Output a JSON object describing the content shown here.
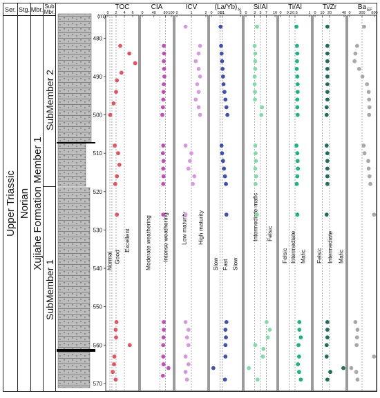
{
  "colors": {
    "TOC": "#e8525f",
    "CIA": "#c64bb8",
    "ICV": "#d79ae0",
    "LaYb": "#3f4fb5",
    "SiAl": "#7fdca6",
    "TiAl": "#17b783",
    "TiZr": "#1d6e5a",
    "Ba": "#a8a8a8",
    "lith_fill": "#b9b9b9",
    "lith_line": "#444444"
  },
  "header": {
    "ser": "Ser.",
    "stg": "Stg.",
    "mbr": "Mbr.",
    "sub_a": "Sub",
    "sub_b": "Mbr."
  },
  "strat": {
    "series": "Upper Triassic",
    "stage": "Norian",
    "member": "Xujiahe Formation Member 1",
    "sub2": "SubMember 2",
    "sub1": "SubMember 1"
  },
  "depth": {
    "unit": "(m)",
    "ticks": [
      "480",
      "490",
      "500",
      "510",
      "520",
      "530",
      "540",
      "550",
      "560",
      "570"
    ]
  },
  "chart_data": {
    "type": "scatter",
    "y_axis": {
      "label": "(m)",
      "range": [
        474,
        572
      ],
      "inverted": true
    },
    "panels": [
      {
        "id": "TOC",
        "title": "TOC",
        "sub": "",
        "xlim": [
          0,
          7
        ],
        "tick_labels": [
          "0",
          "2",
          "4",
          "6"
        ],
        "tick_values": [
          0,
          2,
          4,
          6
        ],
        "grid_values": [
          0.5,
          1,
          2,
          4
        ],
        "zone_labels": [
          "Normal",
          "Good",
          "Excellent"
        ],
        "points": [
          [
            3.0,
            482
          ],
          [
            5.2,
            484
          ],
          [
            6.6,
            486.5
          ],
          [
            3.3,
            489
          ],
          [
            2.2,
            491
          ],
          [
            2.0,
            494
          ],
          [
            1.4,
            497
          ],
          [
            0.6,
            500
          ],
          [
            1.7,
            508
          ],
          [
            2.5,
            510
          ],
          [
            2.8,
            513
          ],
          [
            2.2,
            516
          ],
          [
            1.8,
            518
          ],
          [
            2.2,
            526
          ],
          [
            2.1,
            554
          ],
          [
            1.9,
            556
          ],
          [
            2.0,
            558
          ],
          [
            5.3,
            560
          ],
          [
            1.6,
            563
          ],
          [
            1.5,
            565
          ],
          [
            1.2,
            567
          ],
          [
            1.9,
            569
          ]
        ]
      },
      {
        "id": "CIA",
        "title": "CIA",
        "sub": "",
        "xlim": [
          0,
          100
        ],
        "tick_labels": [
          "0",
          "40",
          "80",
          "100"
        ],
        "tick_values": [
          0,
          40,
          80,
          100
        ],
        "grid_values": [
          60,
          80
        ],
        "zone_labels": [
          "Moderate weathering",
          "Intense weathering"
        ],
        "points": [
          [
            74,
            482
          ],
          [
            75,
            484
          ],
          [
            74,
            486
          ],
          [
            75,
            488
          ],
          [
            76,
            490
          ],
          [
            74,
            492
          ],
          [
            73,
            494
          ],
          [
            72,
            496
          ],
          [
            71,
            498
          ],
          [
            69,
            500
          ],
          [
            72,
            508
          ],
          [
            71,
            510
          ],
          [
            73,
            512
          ],
          [
            72,
            514
          ],
          [
            73,
            516
          ],
          [
            72,
            518
          ],
          [
            72,
            526
          ],
          [
            74,
            554
          ],
          [
            74,
            556
          ],
          [
            73,
            558
          ],
          [
            72,
            560
          ],
          [
            72,
            563
          ],
          [
            73,
            565
          ],
          [
            90,
            566
          ],
          [
            71,
            568
          ]
        ]
      },
      {
        "id": "ICV",
        "title": "ICV",
        "sub": "",
        "xlim": [
          0,
          2
        ],
        "tick_labels": [
          "0",
          "1",
          "2"
        ],
        "tick_values": [
          0,
          1,
          2
        ],
        "grid_values": [
          1
        ],
        "zone_labels": [
          "Low maturity",
          "High maturity"
        ],
        "points": [
          [
            0.6,
            477
          ],
          [
            1.6,
            482
          ],
          [
            1.5,
            484
          ],
          [
            1.3,
            486
          ],
          [
            1.5,
            488
          ],
          [
            1.6,
            490
          ],
          [
            1.4,
            492
          ],
          [
            1.5,
            494
          ],
          [
            1.3,
            496
          ],
          [
            1.5,
            498
          ],
          [
            1.6,
            500
          ],
          [
            0.6,
            508
          ],
          [
            1.0,
            510
          ],
          [
            0.9,
            512
          ],
          [
            0.8,
            514
          ],
          [
            1.2,
            516
          ],
          [
            1.1,
            518
          ],
          [
            0.6,
            526
          ],
          [
            0.6,
            554
          ],
          [
            0.8,
            556
          ],
          [
            0.7,
            558
          ],
          [
            0.8,
            560
          ],
          [
            0.6,
            563
          ],
          [
            0.8,
            565
          ],
          [
            0.6,
            567
          ],
          [
            0.7,
            569
          ]
        ]
      },
      {
        "id": "LaYb",
        "title": "(La/Yb)",
        "sub": "N",
        "xlim": [
          0,
          3
        ],
        "tick_labels": [
          "0",
          "0.9",
          "1.1",
          "3"
        ],
        "tick_values": [
          0,
          0.9,
          1.1,
          3
        ],
        "grid_values": [
          0.9,
          1.1
        ],
        "zone_labels": [
          "Slow",
          "Fast",
          "Slow"
        ],
        "points": [
          [
            0.95,
            477
          ],
          [
            1.0,
            482
          ],
          [
            1.05,
            484
          ],
          [
            1.1,
            486
          ],
          [
            1.15,
            488
          ],
          [
            1.2,
            490
          ],
          [
            1.25,
            492
          ],
          [
            1.35,
            494
          ],
          [
            1.45,
            496
          ],
          [
            1.55,
            498
          ],
          [
            1.65,
            500
          ],
          [
            1.05,
            508
          ],
          [
            1.1,
            510
          ],
          [
            1.2,
            512
          ],
          [
            1.3,
            514
          ],
          [
            1.4,
            516
          ],
          [
            1.5,
            518
          ],
          [
            1.55,
            526
          ],
          [
            1.55,
            554
          ],
          [
            1.45,
            556
          ],
          [
            1.5,
            558
          ],
          [
            1.45,
            560
          ],
          [
            1.45,
            563
          ],
          [
            0.2,
            566
          ],
          [
            1.4,
            569
          ]
        ]
      },
      {
        "id": "SiAl",
        "title": "Si/Al",
        "sub": "",
        "xlim": [
          0,
          10
        ],
        "tick_labels": [
          "0",
          "3",
          "5",
          "7",
          "10"
        ],
        "tick_values": [
          0,
          3,
          5,
          7,
          10
        ],
        "grid_values": [
          3,
          5,
          7
        ],
        "zone_labels": [
          "Intermediate-mafic",
          "Felsic"
        ],
        "points": [
          [
            3.8,
            477
          ],
          [
            3.0,
            482
          ],
          [
            3.2,
            484
          ],
          [
            3.2,
            486
          ],
          [
            3.2,
            488
          ],
          [
            3.0,
            490
          ],
          [
            3.0,
            492
          ],
          [
            3.1,
            494
          ],
          [
            3.1,
            496
          ],
          [
            5.5,
            498
          ],
          [
            5.3,
            500
          ],
          [
            3.2,
            508
          ],
          [
            3.3,
            510
          ],
          [
            3.4,
            512
          ],
          [
            3.2,
            514
          ],
          [
            3.5,
            516
          ],
          [
            3.3,
            518
          ],
          [
            3.8,
            526
          ],
          [
            7.1,
            554
          ],
          [
            8.2,
            556
          ],
          [
            7.5,
            558
          ],
          [
            3.2,
            560
          ],
          [
            6.0,
            561
          ],
          [
            5.8,
            563
          ],
          [
            1.0,
            566
          ],
          [
            4.0,
            569
          ]
        ]
      },
      {
        "id": "TiAl",
        "title": "Ti/Al",
        "sub": "",
        "xlim": [
          0,
          1
        ],
        "tick_labels": [
          "0",
          "0.3",
          "0.5",
          "1"
        ],
        "tick_values": [
          0,
          0.3,
          0.5,
          1
        ],
        "grid_values": [
          0.3,
          0.5
        ],
        "zone_labels": [
          "Felsic",
          "Intermediate",
          "Mafic"
        ],
        "points": [
          [
            0.55,
            477
          ],
          [
            0.57,
            482
          ],
          [
            0.58,
            484
          ],
          [
            0.57,
            486
          ],
          [
            0.56,
            488
          ],
          [
            0.58,
            490
          ],
          [
            0.59,
            492
          ],
          [
            0.59,
            494
          ],
          [
            0.58,
            496
          ],
          [
            0.58,
            498
          ],
          [
            0.59,
            500
          ],
          [
            0.55,
            508
          ],
          [
            0.58,
            510
          ],
          [
            0.59,
            512
          ],
          [
            0.6,
            514
          ],
          [
            0.58,
            516
          ],
          [
            0.56,
            518
          ],
          [
            0.58,
            526
          ],
          [
            0.65,
            554
          ],
          [
            0.65,
            556
          ],
          [
            0.7,
            558
          ],
          [
            0.62,
            560
          ],
          [
            0.64,
            563
          ],
          [
            0.6,
            565
          ],
          [
            0.64,
            567
          ],
          [
            0.7,
            569
          ]
        ]
      },
      {
        "id": "TiZr",
        "title": "Ti/Zr",
        "sub": "",
        "xlim": [
          0,
          40
        ],
        "tick_labels": [
          "0",
          "10",
          "20",
          "40"
        ],
        "tick_values": [
          0,
          10,
          20,
          40
        ],
        "grid_values": [
          10,
          20
        ],
        "zone_labels": [
          "Felsic",
          "Intermediate",
          "Mafic"
        ],
        "points": [
          [
            17,
            477
          ],
          [
            17,
            482
          ],
          [
            17,
            484
          ],
          [
            17,
            486
          ],
          [
            17,
            488
          ],
          [
            17,
            490
          ],
          [
            17,
            492
          ],
          [
            17,
            494
          ],
          [
            17,
            496
          ],
          [
            16,
            498
          ],
          [
            16,
            500
          ],
          [
            16,
            508
          ],
          [
            17,
            510
          ],
          [
            17,
            512
          ],
          [
            17,
            514
          ],
          [
            17,
            516
          ],
          [
            17,
            518
          ],
          [
            16,
            526
          ],
          [
            17,
            554
          ],
          [
            17,
            556
          ],
          [
            17,
            558
          ],
          [
            16,
            560
          ],
          [
            16,
            563
          ],
          [
            39,
            566
          ],
          [
            21,
            567
          ],
          [
            17,
            569
          ]
        ]
      },
      {
        "id": "Ba",
        "title": "Ba",
        "sub": "EF",
        "xlim": [
          0,
          600
        ],
        "tick_labels": [
          "0",
          "300",
          "600"
        ],
        "tick_values": [
          0,
          300,
          600
        ],
        "grid_values": [
          300
        ],
        "zone_labels": [],
        "points": [
          [
            350,
            477
          ],
          [
            180,
            482
          ],
          [
            140,
            484
          ],
          [
            120,
            486
          ],
          [
            230,
            488
          ],
          [
            310,
            490
          ],
          [
            420,
            492
          ],
          [
            460,
            494
          ],
          [
            470,
            496
          ],
          [
            480,
            498
          ],
          [
            470,
            500
          ],
          [
            340,
            508
          ],
          [
            360,
            510
          ],
          [
            450,
            512
          ],
          [
            460,
            514
          ],
          [
            480,
            516
          ],
          [
            500,
            518
          ],
          [
            590,
            526
          ],
          [
            140,
            554
          ],
          [
            190,
            556
          ],
          [
            180,
            558
          ],
          [
            170,
            560
          ],
          [
            590,
            563
          ],
          [
            40,
            566
          ],
          [
            160,
            567
          ],
          [
            190,
            569
          ]
        ]
      }
    ]
  }
}
